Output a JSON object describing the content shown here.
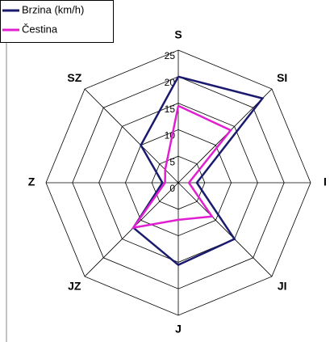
{
  "chart_data": {
    "type": "radar",
    "categories": [
      "S",
      "SI",
      "I",
      "JI",
      "J",
      "JZ",
      "Z",
      "SZ"
    ],
    "series": [
      {
        "name": "Brzina (km/h)",
        "color": "#1a1a6e",
        "values": [
          20,
          22.5,
          3.5,
          15,
          15.5,
          12,
          3,
          10
        ]
      },
      {
        "name": "Čestina",
        "color": "#e020d0",
        "values": [
          14.5,
          14,
          2,
          9,
          7,
          12,
          2.5,
          3.5
        ]
      }
    ],
    "ylim": [
      0,
      25
    ],
    "yticks": [
      0,
      5,
      10,
      15,
      20,
      25
    ],
    "grid": true,
    "legend": "top-left"
  }
}
